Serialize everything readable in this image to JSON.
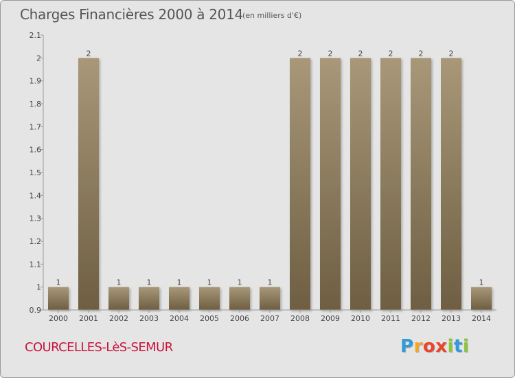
{
  "header": {
    "title": "Charges Financières 2000 à 2014",
    "unit": "(en milliers d'€)"
  },
  "footer": {
    "commune": "COURCELLES-LèS-SEMUR",
    "logo_letters": [
      "P",
      "r",
      "o",
      "x",
      "i",
      "t",
      "i"
    ],
    "logo_colors": [
      "#2f9bd9",
      "#f5a623",
      "#e8452c",
      "#e8452c",
      "#8cc63f",
      "#2f9bd9",
      "#8cc63f"
    ]
  },
  "chart_data": {
    "type": "bar",
    "title": "Charges Financières 2000 à 2014",
    "subtitle": "(en milliers d'€)",
    "xlabel": "",
    "ylabel": "",
    "categories": [
      "2000",
      "2001",
      "2002",
      "2003",
      "2004",
      "2005",
      "2006",
      "2007",
      "2008",
      "2009",
      "2010",
      "2011",
      "2012",
      "2013",
      "2014"
    ],
    "values": [
      1,
      2,
      1,
      1,
      1,
      1,
      1,
      1,
      2,
      2,
      2,
      2,
      2,
      2,
      1
    ],
    "data_labels": [
      "1",
      "2",
      "1",
      "1",
      "1",
      "1",
      "1",
      "1",
      "2",
      "2",
      "2",
      "2",
      "2",
      "2",
      "1"
    ],
    "ylim": [
      0.9,
      2.1
    ],
    "yticks": [
      "0.9",
      "1",
      "1.1",
      "1.2",
      "1.3",
      "1.4",
      "1.5",
      "1.6",
      "1.7",
      "1.8",
      "1.9",
      "2",
      "2.1"
    ],
    "grid": false,
    "legend": "none",
    "colors": {
      "bar_top": "#a89878",
      "bar_bottom": "#6e5e42",
      "background": "#e5e5e5"
    }
  }
}
